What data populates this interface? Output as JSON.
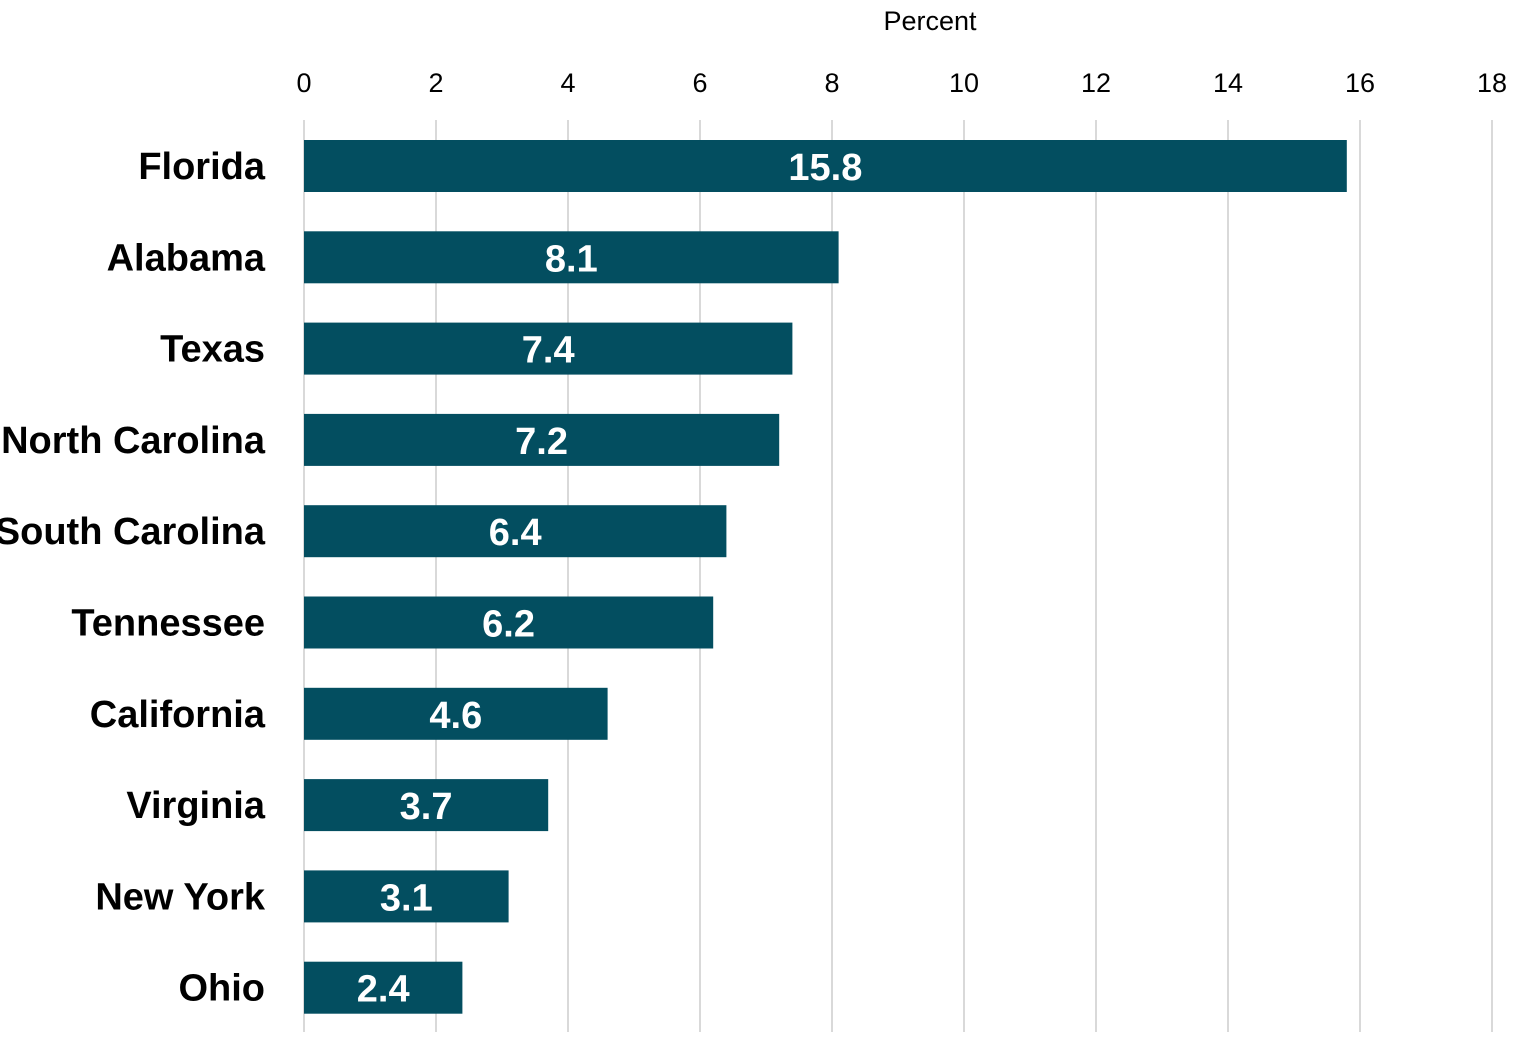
{
  "chart_data": {
    "type": "bar",
    "orientation": "horizontal",
    "xlabel": "Percent",
    "ylabel": "",
    "xlim": [
      0,
      18
    ],
    "x_ticks": [
      0,
      2,
      4,
      6,
      8,
      10,
      12,
      14,
      16,
      18
    ],
    "x_axis_position": "top",
    "grid": true,
    "legend": "none",
    "data_labels": true,
    "categories": [
      "Florida",
      "Alabama",
      "Texas",
      "North Carolina",
      "South Carolina",
      "Tennessee",
      "California",
      "Virginia",
      "New York",
      "Ohio"
    ],
    "values": [
      15.8,
      8.1,
      7.4,
      7.2,
      6.4,
      6.2,
      4.6,
      3.7,
      3.1,
      2.4
    ],
    "value_labels": [
      "15.8",
      "8.1",
      "7.4",
      "7.2",
      "6.4",
      "6.2",
      "4.6",
      "3.7",
      "3.1",
      "2.4"
    ],
    "colors": {
      "bar": "#034e60",
      "bar_label": "#ffffff",
      "grid": "#d9d9d9",
      "text": "#000000"
    }
  }
}
